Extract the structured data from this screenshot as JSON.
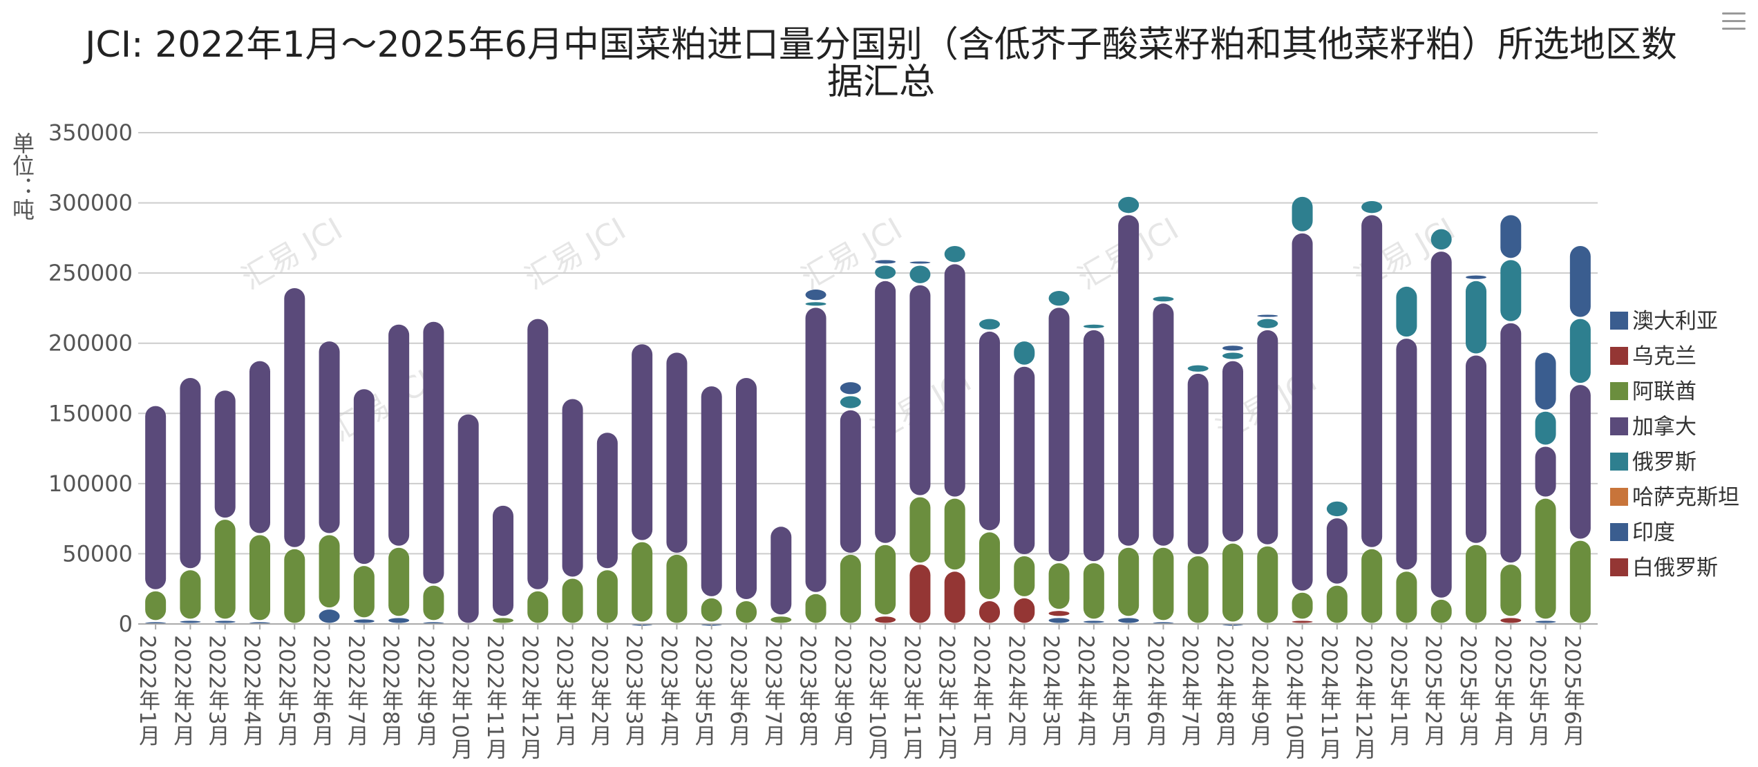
{
  "menu_icon": "hamburger-menu-icon",
  "chart_data": {
    "type": "bar",
    "stacked": true,
    "title_lines": [
      "JCI: 2022年1月～2025年6月中国菜粕进口量分国别（含低芥子酸菜籽粕和其他菜籽粕）所选地区数",
      "据汇总"
    ],
    "ylabel": "单位：吨",
    "ylim": [
      0,
      350000
    ],
    "yticks": [
      0,
      50000,
      100000,
      150000,
      200000,
      250000,
      300000,
      350000
    ],
    "watermark": "汇易 JCI",
    "categories": [
      "2022年1月",
      "2022年2月",
      "2022年3月",
      "2022年4月",
      "2022年5月",
      "2022年6月",
      "2022年7月",
      "2022年8月",
      "2022年9月",
      "2022年10月",
      "2022年11月",
      "2022年12月",
      "2023年1月",
      "2023年2月",
      "2023年3月",
      "2023年4月",
      "2023年5月",
      "2023年6月",
      "2023年7月",
      "2023年8月",
      "2023年9月",
      "2023年10月",
      "2023年11月",
      "2023年12月",
      "2024年1月",
      "2024年2月",
      "2024年3月",
      "2024年4月",
      "2024年5月",
      "2024年6月",
      "2024年7月",
      "2024年8月",
      "2024年9月",
      "2024年10月",
      "2024年11月",
      "2024年12月",
      "2025年1月",
      "2025年2月",
      "2025年3月",
      "2025年4月",
      "2025年5月",
      "2025年6月"
    ],
    "stack_order": [
      "印度",
      "白俄罗斯",
      "乌克兰",
      "哈萨克斯坦",
      "阿联酋",
      "加拿大",
      "俄罗斯",
      "澳大利亚"
    ],
    "series": [
      {
        "name": "澳大利亚",
        "color": "#3a5d8f",
        "values": [
          0,
          0,
          0,
          0,
          0,
          0,
          0,
          0,
          0,
          0,
          0,
          0,
          0,
          0,
          0,
          0,
          0,
          0,
          0,
          9000,
          10000,
          4000,
          3000,
          0,
          0,
          0,
          0,
          0,
          0,
          0,
          0,
          5000,
          3000,
          0,
          0,
          0,
          0,
          0,
          4000,
          32000,
          42000,
          52000
        ]
      },
      {
        "name": "乌克兰",
        "color": "#943634",
        "values": [
          0,
          0,
          0,
          0,
          0,
          0,
          0,
          0,
          0,
          0,
          0,
          0,
          0,
          0,
          0,
          0,
          0,
          0,
          0,
          0,
          0,
          0,
          0,
          0,
          0,
          0,
          0,
          0,
          0,
          0,
          0,
          0,
          0,
          0,
          0,
          0,
          0,
          0,
          0,
          5000,
          0,
          0
        ]
      },
      {
        "name": "阿联酋",
        "color": "#6b8e3e",
        "values": [
          22000,
          36000,
          72000,
          62000,
          54000,
          53000,
          38000,
          50000,
          26000,
          0,
          5000,
          24000,
          33000,
          39000,
          58000,
          50000,
          18000,
          17000,
          6000,
          22000,
          50000,
          51000,
          48000,
          52000,
          49000,
          30000,
          34000,
          41000,
          50000,
          53000,
          49000,
          57000,
          56000,
          20000,
          28000,
          54000,
          38000,
          18000,
          57000,
          38000,
          87000,
          60000
        ]
      },
      {
        "name": "加拿大",
        "color": "#5a4a7a",
        "values": [
          132000,
          137000,
          92000,
          124000,
          186000,
          138000,
          126000,
          159000,
          188000,
          150000,
          80000,
          194000,
          128000,
          98000,
          141000,
          144000,
          151000,
          159000,
          64000,
          204000,
          103000,
          188000,
          151000,
          167000,
          143000,
          135000,
          182000,
          166000,
          237000,
          174000,
          130000,
          130000,
          154000,
          256000,
          48000,
          238000,
          166000,
          248000,
          135000,
          172000,
          37000,
          111000
        ]
      },
      {
        "name": "俄罗斯",
        "color": "#2e7f8f",
        "values": [
          0,
          0,
          0,
          0,
          0,
          0,
          0,
          0,
          0,
          0,
          0,
          0,
          0,
          0,
          0,
          0,
          0,
          0,
          0,
          4000,
          10000,
          11000,
          14000,
          13000,
          9000,
          18000,
          12000,
          4000,
          13000,
          5000,
          6000,
          6000,
          8000,
          26000,
          12000,
          10000,
          37000,
          16000,
          53000,
          45000,
          25000,
          47000
        ]
      },
      {
        "name": "哈萨克斯坦",
        "color": "#c8743a",
        "values": [
          0,
          0,
          0,
          0,
          0,
          0,
          0,
          0,
          0,
          0,
          0,
          0,
          0,
          0,
          0,
          0,
          0,
          0,
          0,
          0,
          0,
          0,
          0,
          0,
          0,
          0,
          0,
          0,
          0,
          0,
          0,
          0,
          0,
          0,
          0,
          0,
          0,
          0,
          0,
          0,
          0,
          0
        ]
      },
      {
        "name": "印度",
        "color": "#3a5d8f",
        "values": [
          2000,
          3000,
          3000,
          2000,
          0,
          11000,
          4000,
          5000,
          2000,
          0,
          0,
          0,
          0,
          0,
          1000,
          0,
          1000,
          0,
          0,
          0,
          0,
          0,
          0,
          0,
          0,
          0,
          5000,
          3000,
          5000,
          2000,
          0,
          1000,
          0,
          0,
          0,
          0,
          0,
          0,
          0,
          0,
          3000,
          0
        ]
      },
      {
        "name": "白俄罗斯",
        "color": "#943634",
        "values": [
          0,
          0,
          0,
          0,
          0,
          0,
          0,
          0,
          0,
          0,
          0,
          0,
          0,
          0,
          0,
          0,
          0,
          0,
          0,
          0,
          0,
          6000,
          43000,
          38000,
          17000,
          19000,
          5000,
          0,
          0,
          0,
          0,
          0,
          0,
          3000,
          0,
          0,
          0,
          0,
          0,
          0,
          0,
          0
        ]
      }
    ]
  }
}
